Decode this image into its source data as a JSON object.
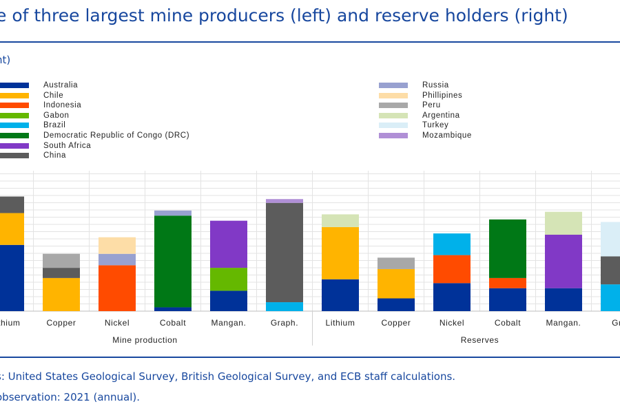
{
  "header": {
    "title": "e of three largest mine producers (left) and reserve holders (right)",
    "unit": "nt)"
  },
  "legend": {
    "left": [
      {
        "label": "Australia",
        "color": "#003299"
      },
      {
        "label": "Chile",
        "color": "#ffb400"
      },
      {
        "label": "Indonesia",
        "color": "#ff4b00"
      },
      {
        "label": "Gabon",
        "color": "#65b800"
      },
      {
        "label": "Brazil",
        "color": "#00b1ea"
      },
      {
        "label": "Democratic Republic of Congo (DRC)",
        "color": "#007816"
      },
      {
        "label": "South Africa",
        "color": "#8139c6"
      },
      {
        "label": "China",
        "color": "#5c5c5c"
      }
    ],
    "right": [
      {
        "label": "Russia",
        "color": "#98a1d0"
      },
      {
        "label": "Phillipines",
        "color": "#fdddA7"
      },
      {
        "label": "Peru",
        "color": "#a8a8a8"
      },
      {
        "label": "Argentina",
        "color": "#d5e4b6"
      },
      {
        "label": "Turkey",
        "color": "#daeef7"
      },
      {
        "label": "Mozambique",
        "color": "#b08fd6"
      }
    ]
  },
  "chart_data": {
    "type": "bar",
    "stacked": true,
    "grid": true,
    "y_unit": "percent",
    "groups": [
      {
        "label": "Mine production",
        "categories": [
          "Lithium",
          "Copper",
          "Nickel",
          "Cobalt",
          "Mangan.",
          "Graph."
        ]
      },
      {
        "label": "Reserves",
        "categories": [
          "Lithium",
          "Copper",
          "Nickel",
          "Cobalt",
          "Mangan.",
          "Gra"
        ]
      }
    ],
    "bars": [
      {
        "category": "Lithium",
        "group": "Mine production",
        "segments": [
          {
            "series": "Australia",
            "value": 52
          },
          {
            "series": "Chile",
            "value": 25
          },
          {
            "series": "China",
            "value": 13
          }
        ]
      },
      {
        "category": "Copper",
        "group": "Mine production",
        "segments": [
          {
            "series": "Chile",
            "value": 26
          },
          {
            "series": "China",
            "value": 8
          },
          {
            "series": "Peru",
            "value": 11
          }
        ]
      },
      {
        "category": "Nickel",
        "group": "Mine production",
        "segments": [
          {
            "series": "Indonesia",
            "value": 36
          },
          {
            "series": "Russia",
            "value": 9
          },
          {
            "series": "Phillipines",
            "value": 13
          }
        ]
      },
      {
        "category": "Cobalt",
        "group": "Mine production",
        "segments": [
          {
            "series": "Australia",
            "value": 3
          },
          {
            "series": "Democratic Republic of Congo (DRC)",
            "value": 72
          },
          {
            "series": "Russia",
            "value": 4
          }
        ]
      },
      {
        "category": "Mangan.",
        "group": "Mine production",
        "segments": [
          {
            "series": "Australia",
            "value": 16
          },
          {
            "series": "Gabon",
            "value": 18
          },
          {
            "series": "South Africa",
            "value": 37
          }
        ]
      },
      {
        "category": "Graph.",
        "group": "Mine production",
        "segments": [
          {
            "series": "Brazil",
            "value": 7
          },
          {
            "series": "China",
            "value": 78
          },
          {
            "series": "Mozambique",
            "value": 3
          }
        ]
      },
      {
        "category": "Lithium",
        "group": "Reserves",
        "segments": [
          {
            "series": "Australia",
            "value": 25
          },
          {
            "series": "Chile",
            "value": 41
          },
          {
            "series": "Argentina",
            "value": 10
          }
        ]
      },
      {
        "category": "Copper",
        "group": "Reserves",
        "segments": [
          {
            "series": "Australia",
            "value": 10
          },
          {
            "series": "Chile",
            "value": 23
          },
          {
            "series": "Peru",
            "value": 9
          }
        ]
      },
      {
        "category": "Nickel",
        "group": "Reserves",
        "segments": [
          {
            "series": "Australia",
            "value": 22
          },
          {
            "series": "Indonesia",
            "value": 22
          },
          {
            "series": "Brazil",
            "value": 17
          }
        ]
      },
      {
        "category": "Cobalt",
        "group": "Reserves",
        "segments": [
          {
            "series": "Australia",
            "value": 18
          },
          {
            "series": "Indonesia",
            "value": 8
          },
          {
            "series": "Democratic Republic of Congo (DRC)",
            "value": 46
          }
        ]
      },
      {
        "category": "Mangan.",
        "group": "Reserves",
        "segments": [
          {
            "series": "Australia",
            "value": 18
          },
          {
            "series": "South Africa",
            "value": 42
          },
          {
            "series": "Argentina",
            "value": 18
          }
        ]
      },
      {
        "category": "Gra",
        "group": "Reserves",
        "segments": [
          {
            "series": "Brazil",
            "value": 21
          },
          {
            "series": "China",
            "value": 22
          },
          {
            "series": "Turkey",
            "value": 27
          }
        ]
      }
    ]
  },
  "notes": {
    "sources": "s: United States Geological Survey, British Geological Survey, and ECB staff calculations.",
    "latest": "observation: 2021 (annual)."
  }
}
